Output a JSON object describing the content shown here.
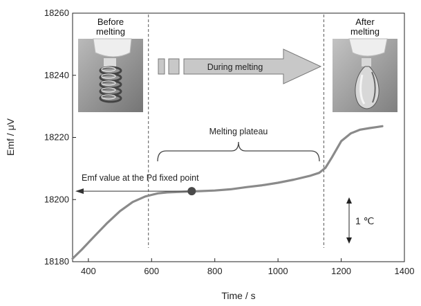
{
  "chart_data": {
    "type": "line",
    "xlabel": "Time / s",
    "ylabel": "Emf / μV",
    "xlim": [
      350,
      1400
    ],
    "ylim": [
      18180,
      18260
    ],
    "xticks": [
      "400",
      "600",
      "800",
      "1000",
      "1200",
      "1400"
    ],
    "yticks": [
      "18180",
      "18200",
      "18220",
      "18240",
      "18260"
    ],
    "grid": false,
    "series": [
      {
        "x": [
          350,
          380,
          420,
          460,
          500,
          540,
          580,
          600,
          620,
          650,
          700,
          750,
          800,
          850,
          900,
          950,
          1000,
          1050,
          1100,
          1130,
          1150,
          1170,
          1200,
          1230,
          1260,
          1290,
          1310,
          1330
        ],
        "y": [
          18181.0,
          18184.0,
          18188.3,
          18192.5,
          18196.3,
          18199.2,
          18201.0,
          18201.5,
          18202.0,
          18202.3,
          18202.5,
          18202.7,
          18202.9,
          18203.3,
          18204.0,
          18204.6,
          18205.4,
          18206.4,
          18207.6,
          18208.6,
          18210.2,
          18213.5,
          18218.8,
          18221.3,
          18222.5,
          18223.0,
          18223.3,
          18223.6
        ]
      }
    ],
    "vlines": [
      590,
      1145
    ],
    "fixed_point": {
      "x": 727,
      "y": 18202.7
    },
    "annotations": {
      "before": [
        "Before",
        "melting"
      ],
      "after": [
        "After",
        "melting"
      ],
      "during": "During melting",
      "plateau": "Melting plateau",
      "pd_point": "Emf value at the Pd fixed point",
      "scale": "1 ℃"
    },
    "colors": {
      "line": "#8a8a8a",
      "marker": "#4a4a4a",
      "arrow_fill": "#c8c8c8",
      "arrow_stroke": "#777777",
      "guide": "#555555"
    }
  }
}
